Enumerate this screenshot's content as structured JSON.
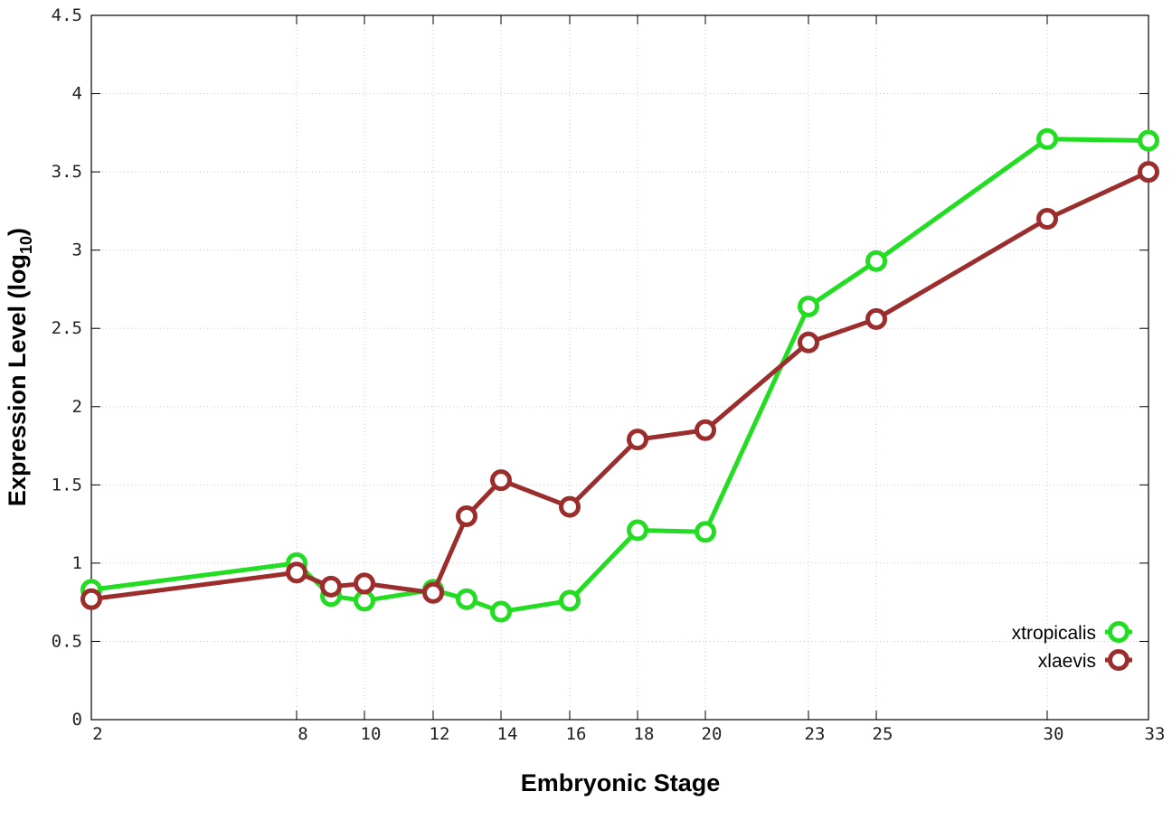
{
  "chart_data": {
    "type": "line",
    "xlabel": "Embryonic Stage",
    "ylabel_main": "Expression Level (log",
    "ylabel_sub": "10",
    "ylabel_close": ")",
    "x_ticks": [
      "2",
      "8",
      "10",
      "12",
      "14",
      "16",
      "18",
      "20",
      "23",
      "25",
      "30",
      "33"
    ],
    "y_ticks": [
      "0",
      "0.5",
      "1",
      "1.5",
      "2",
      "2.5",
      "3",
      "3.5",
      "4",
      "4.5"
    ],
    "ylim": [
      0,
      4.5
    ],
    "x_stages": [
      2,
      8,
      9,
      10,
      12,
      13,
      14,
      16,
      18,
      20,
      23,
      25,
      30,
      33
    ],
    "grid": true,
    "legend_position": "bottom-right",
    "series": [
      {
        "name": "xtropicalis",
        "color": "#22dd22",
        "values": [
          0.83,
          1.0,
          0.79,
          0.76,
          0.83,
          0.77,
          0.69,
          0.76,
          1.21,
          1.2,
          2.64,
          2.93,
          3.71,
          3.7
        ]
      },
      {
        "name": "xlaevis",
        "color": "#9b2d2d",
        "values": [
          0.77,
          0.94,
          0.85,
          0.87,
          0.81,
          1.3,
          1.53,
          1.36,
          1.79,
          1.85,
          2.41,
          2.56,
          3.2,
          3.5
        ]
      }
    ]
  }
}
